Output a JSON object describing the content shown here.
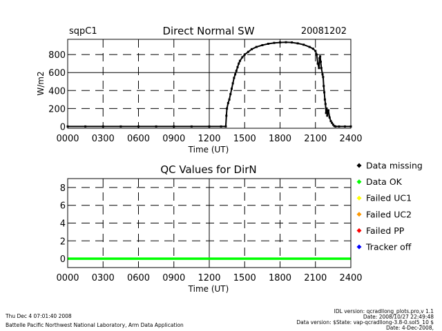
{
  "header": {
    "site": "sqpC1",
    "date": "20081202"
  },
  "legend": [
    {
      "label": "Data missing",
      "color": "#000000"
    },
    {
      "label": "Data OK",
      "color": "#00ff00"
    },
    {
      "label": "Failed UC1",
      "color": "#ffff00"
    },
    {
      "label": "Failed UC2",
      "color": "#ff9900"
    },
    {
      "label": "Failed PP",
      "color": "#ff0000"
    },
    {
      "label": "Tracker off",
      "color": "#0000ff"
    }
  ],
  "footer": {
    "left_line1": "Thu Dec  4 07:01:40 2008",
    "left_line2": "Battelle Pacific Northwest National Laboratory, Arm Data Application",
    "right_line1": "IDL version: qcradllong_plots.pro,v 1.1",
    "right_line2": "Date: 2008/10/27 22:49:48",
    "right_line3": "Data version: $State: vap-qcradllong-3.8-0.sol5_10 $",
    "right_line4": "Date: 4-Dec-2008,"
  },
  "chart_data": [
    {
      "type": "scatter",
      "title": "Direct Normal SW",
      "xlabel": "Time (UT)",
      "ylabel": "W/m2",
      "xlim": [
        0,
        2400
      ],
      "ylim": [
        -20,
        970
      ],
      "x_ticks": [
        "0000",
        "0300",
        "0600",
        "0900",
        "1200",
        "1500",
        "1800",
        "2100",
        "2400"
      ],
      "y_ticks": [
        0,
        200,
        400,
        600,
        800
      ],
      "grid": true,
      "series": [
        {
          "points": [
            [
              0,
              0
            ],
            [
              150,
              0
            ],
            [
              300,
              0
            ],
            [
              450,
              0
            ],
            [
              600,
              0
            ],
            [
              750,
              0
            ],
            [
              900,
              0
            ],
            [
              1050,
              0
            ],
            [
              1200,
              0
            ],
            [
              1300,
              0
            ],
            [
              1340,
              0
            ],
            [
              1345,
              120
            ],
            [
              1350,
              200
            ],
            [
              1360,
              260
            ],
            [
              1370,
              300
            ],
            [
              1380,
              360
            ],
            [
              1390,
              420
            ],
            [
              1400,
              480
            ],
            [
              1410,
              540
            ],
            [
              1420,
              580
            ],
            [
              1430,
              620
            ],
            [
              1440,
              660
            ],
            [
              1450,
              700
            ],
            [
              1460,
              730
            ],
            [
              1480,
              770
            ],
            [
              1500,
              800
            ],
            [
              1530,
              830
            ],
            [
              1560,
              860
            ],
            [
              1600,
              885
            ],
            [
              1650,
              905
            ],
            [
              1700,
              920
            ],
            [
              1750,
              930
            ],
            [
              1800,
              935
            ],
            [
              1850,
              937
            ],
            [
              1900,
              935
            ],
            [
              1950,
              925
            ],
            [
              2000,
              910
            ],
            [
              2050,
              885
            ],
            [
              2080,
              865
            ],
            [
              2100,
              840
            ],
            [
              2110,
              800
            ],
            [
              2120,
              700
            ],
            [
              2130,
              650
            ],
            [
              2135,
              760
            ],
            [
              2140,
              780
            ],
            [
              2145,
              720
            ],
            [
              2150,
              650
            ],
            [
              2160,
              580
            ],
            [
              2165,
              550
            ],
            [
              2170,
              450
            ],
            [
              2175,
              380
            ],
            [
              2180,
              300
            ],
            [
              2185,
              250
            ],
            [
              2190,
              150
            ],
            [
              2195,
              200
            ],
            [
              2200,
              120
            ],
            [
              2210,
              180
            ],
            [
              2220,
              100
            ],
            [
              2230,
              60
            ],
            [
              2240,
              40
            ],
            [
              2250,
              20
            ],
            [
              2260,
              5
            ],
            [
              2270,
              0
            ],
            [
              2300,
              0
            ],
            [
              2350,
              0
            ],
            [
              2400,
              0
            ]
          ]
        }
      ]
    },
    {
      "type": "scatter",
      "title": "QC Values for DirN",
      "xlabel": "Time (UT)",
      "ylabel": "",
      "xlim": [
        0,
        2400
      ],
      "ylim": [
        -1,
        9
      ],
      "x_ticks": [
        "0000",
        "0300",
        "0600",
        "0900",
        "1200",
        "1500",
        "1800",
        "2100",
        "2400"
      ],
      "y_ticks": [
        0,
        2,
        4,
        6,
        8
      ],
      "grid": true,
      "series": [
        {
          "points": [
            [
              0,
              0
            ],
            [
              2400,
              0
            ]
          ]
        }
      ]
    }
  ]
}
